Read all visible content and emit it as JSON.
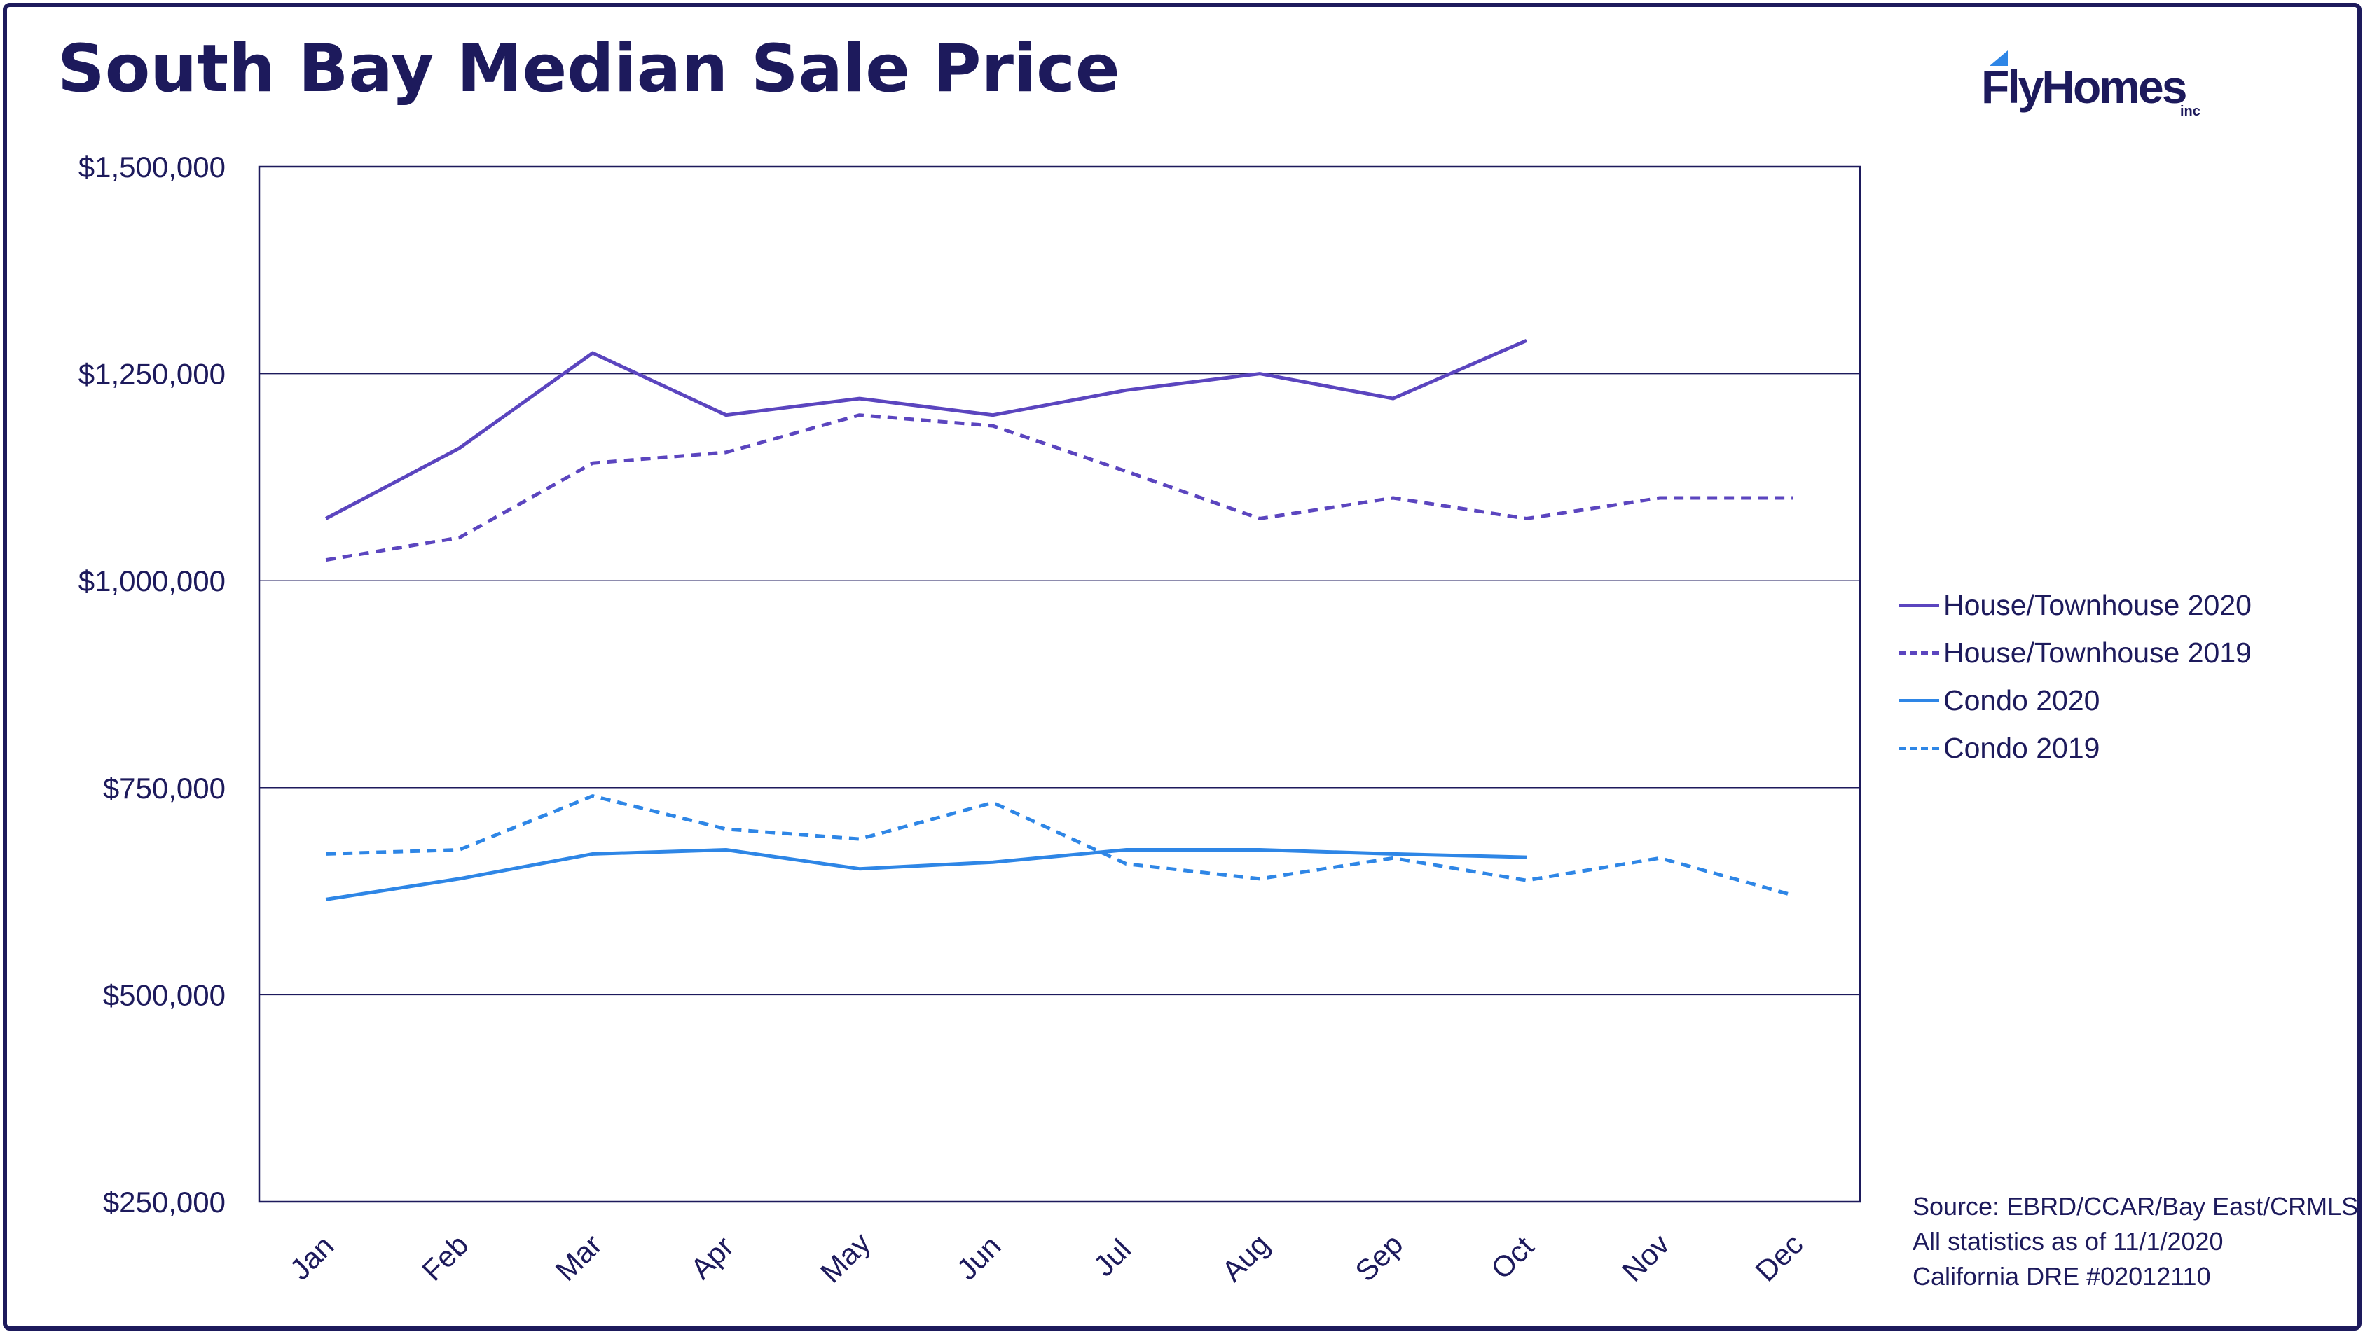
{
  "brand": {
    "name": "FlyHomes",
    "suffix": "inc"
  },
  "footer": {
    "source": "Source: EBRD/CCAR/Bay East/CRMLS",
    "stats_date": "All statistics as of 11/1/2020",
    "license": "California DRE #02012110"
  },
  "colors": {
    "navy": "#1d1a5c",
    "purple": "#5b45bf",
    "blue": "#2e86e6"
  },
  "chart_data": {
    "type": "line",
    "title": "South Bay Median Sale Price",
    "xlabel": "",
    "ylabel": "",
    "categories": [
      "Jan",
      "Feb",
      "Mar",
      "Apr",
      "May",
      "Jun",
      "Jul",
      "Aug",
      "Sep",
      "Oct",
      "Nov",
      "Dec"
    ],
    "ylim": [
      250000,
      1500000
    ],
    "yticks": [
      250000,
      500000,
      750000,
      1000000,
      1250000,
      1500000
    ],
    "ytick_labels": [
      "$250,000",
      "$500,000",
      "$750,000",
      "$1,000,000",
      "$1,250,000",
      "$1,500,000"
    ],
    "grid": "horizontal",
    "legend_position": "right",
    "series": [
      {
        "name": "House/Townhouse 2020",
        "color": "#5b45bf",
        "dash": false,
        "values": [
          1075000,
          1160000,
          1275000,
          1200000,
          1220000,
          1200000,
          1230000,
          1250000,
          1220000,
          1290000,
          null,
          null
        ]
      },
      {
        "name": "House/Townhouse 2019",
        "color": "#5b45bf",
        "dash": true,
        "values": [
          1025000,
          1052000,
          1142000,
          1155000,
          1200000,
          1187000,
          1132000,
          1075000,
          1100000,
          1075000,
          1100000,
          1100000
        ]
      },
      {
        "name": "Condo 2020",
        "color": "#2e86e6",
        "dash": false,
        "values": [
          615000,
          640000,
          670000,
          675000,
          652000,
          660000,
          675000,
          675000,
          670000,
          666000,
          null,
          null
        ]
      },
      {
        "name": "Condo 2019",
        "color": "#2e86e6",
        "dash": true,
        "values": [
          670000,
          675000,
          740000,
          700000,
          688000,
          732000,
          658000,
          640000,
          665000,
          638000,
          665000,
          620000
        ]
      }
    ]
  }
}
